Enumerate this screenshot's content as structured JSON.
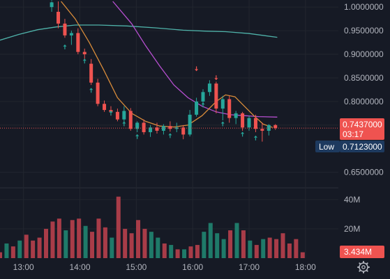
{
  "colors": {
    "background": "#161a25",
    "grid": "#22262f",
    "axis_text": "#b2b5be",
    "up": "#26a69a",
    "down": "#ef5350",
    "vol_up": "#1f7a69",
    "vol_down": "#a83c48",
    "ma_fast": "#d98c3a",
    "ma_mid": "#b74fd1",
    "ma_slow": "#4fb3aa",
    "arrow_up": "#26a69a",
    "arrow_down": "#ef5350",
    "price_label_bg": "#ef5350",
    "low_label_bg": "#1e3a5f"
  },
  "price_axis": {
    "ticks": [
      "1.0000000",
      "0.9500000",
      "0.9000000",
      "0.8500000",
      "0.8000000",
      "0.7500000",
      "0.6500000"
    ]
  },
  "volume_axis": {
    "ticks": [
      "40M",
      "20M"
    ]
  },
  "time_axis": {
    "ticks": [
      "13:00",
      "14:00",
      "15:00",
      "16:00",
      "17:00",
      "18:00"
    ]
  },
  "current_price": {
    "value": "0.7437000",
    "countdown": "03:17"
  },
  "low_marker": {
    "label": "Low",
    "value": "0.7123000"
  },
  "current_volume": {
    "value": "3.434M"
  },
  "settings_icon": "gear-icon",
  "chart_data": {
    "type": "candlestick",
    "price_range": [
      0.62,
      1.015
    ],
    "volume_range": [
      0,
      48
    ],
    "x_time_range": [
      "12:35",
      "18:35"
    ],
    "candles": [
      {
        "t": "13:30",
        "o": 1.0,
        "h": 1.012,
        "l": 0.99,
        "c": 1.01
      },
      {
        "t": "13:37",
        "o": 0.99,
        "h": 1.012,
        "l": 0.955,
        "c": 0.965
      },
      {
        "t": "13:44",
        "o": 0.965,
        "h": 0.975,
        "l": 0.935,
        "c": 0.94
      },
      {
        "t": "13:51",
        "o": 0.94,
        "h": 0.95,
        "l": 0.92,
        "c": 0.945
      },
      {
        "t": "13:58",
        "o": 0.945,
        "h": 0.955,
        "l": 0.9,
        "c": 0.905
      },
      {
        "t": "14:05",
        "o": 0.905,
        "h": 0.912,
        "l": 0.89,
        "c": 0.9
      },
      {
        "t": "14:12",
        "o": 0.88,
        "h": 0.89,
        "l": 0.835,
        "c": 0.84
      },
      {
        "t": "14:19",
        "o": 0.84,
        "h": 0.848,
        "l": 0.79,
        "c": 0.795
      },
      {
        "t": "14:26",
        "o": 0.795,
        "h": 0.802,
        "l": 0.778,
        "c": 0.782
      },
      {
        "t": "14:33",
        "o": 0.782,
        "h": 0.79,
        "l": 0.77,
        "c": 0.778
      },
      {
        "t": "14:40",
        "o": 0.778,
        "h": 0.785,
        "l": 0.758,
        "c": 0.762
      },
      {
        "t": "14:47",
        "o": 0.762,
        "h": 0.79,
        "l": 0.755,
        "c": 0.78
      },
      {
        "t": "14:54",
        "o": 0.78,
        "h": 0.786,
        "l": 0.738,
        "c": 0.742
      },
      {
        "t": "15:01",
        "o": 0.742,
        "h": 0.758,
        "l": 0.735,
        "c": 0.755
      },
      {
        "t": "15:08",
        "o": 0.755,
        "h": 0.762,
        "l": 0.73,
        "c": 0.735
      },
      {
        "t": "15:15",
        "o": 0.735,
        "h": 0.75,
        "l": 0.725,
        "c": 0.745
      },
      {
        "t": "15:22",
        "o": 0.745,
        "h": 0.755,
        "l": 0.732,
        "c": 0.738
      },
      {
        "t": "15:29",
        "o": 0.738,
        "h": 0.752,
        "l": 0.73,
        "c": 0.748
      },
      {
        "t": "15:36",
        "o": 0.748,
        "h": 0.758,
        "l": 0.736,
        "c": 0.742
      },
      {
        "t": "15:43",
        "o": 0.742,
        "h": 0.755,
        "l": 0.735,
        "c": 0.745
      },
      {
        "t": "15:50",
        "o": 0.745,
        "h": 0.75,
        "l": 0.72,
        "c": 0.73
      },
      {
        "t": "15:57",
        "o": 0.73,
        "h": 0.782,
        "l": 0.726,
        "c": 0.772
      },
      {
        "t": "16:04",
        "o": 0.772,
        "h": 0.808,
        "l": 0.768,
        "c": 0.8
      },
      {
        "t": "16:11",
        "o": 0.8,
        "h": 0.826,
        "l": 0.795,
        "c": 0.82
      },
      {
        "t": "16:18",
        "o": 0.82,
        "h": 0.845,
        "l": 0.812,
        "c": 0.838
      },
      {
        "t": "16:25",
        "o": 0.838,
        "h": 0.842,
        "l": 0.775,
        "c": 0.785
      },
      {
        "t": "16:32",
        "o": 0.785,
        "h": 0.812,
        "l": 0.76,
        "c": 0.805
      },
      {
        "t": "16:39",
        "o": 0.805,
        "h": 0.812,
        "l": 0.755,
        "c": 0.765
      },
      {
        "t": "16:46",
        "o": 0.765,
        "h": 0.78,
        "l": 0.752,
        "c": 0.775
      },
      {
        "t": "16:53",
        "o": 0.775,
        "h": 0.778,
        "l": 0.738,
        "c": 0.745
      },
      {
        "t": "17:00",
        "o": 0.745,
        "h": 0.77,
        "l": 0.738,
        "c": 0.765
      },
      {
        "t": "17:07",
        "o": 0.765,
        "h": 0.772,
        "l": 0.735,
        "c": 0.742
      },
      {
        "t": "17:14",
        "o": 0.742,
        "h": 0.755,
        "l": 0.715,
        "c": 0.738
      },
      {
        "t": "17:21",
        "o": 0.738,
        "h": 0.752,
        "l": 0.728,
        "c": 0.75
      },
      {
        "t": "17:28",
        "o": 0.75,
        "h": 0.752,
        "l": 0.74,
        "c": 0.7437
      }
    ],
    "volume": [
      {
        "t": "12:35",
        "v": 4,
        "up": false
      },
      {
        "t": "12:42",
        "v": 10,
        "up": true
      },
      {
        "t": "12:49",
        "v": 8,
        "up": false
      },
      {
        "t": "12:56",
        "v": 12,
        "up": true
      },
      {
        "t": "13:03",
        "v": 16,
        "up": false
      },
      {
        "t": "13:10",
        "v": 12,
        "up": false
      },
      {
        "t": "13:17",
        "v": 14,
        "up": false
      },
      {
        "t": "13:24",
        "v": 20,
        "up": false
      },
      {
        "t": "13:31",
        "v": 25,
        "up": false
      },
      {
        "t": "13:38",
        "v": 27,
        "up": false
      },
      {
        "t": "13:45",
        "v": 19,
        "up": true
      },
      {
        "t": "13:52",
        "v": 26,
        "up": false
      },
      {
        "t": "13:59",
        "v": 27,
        "up": false
      },
      {
        "t": "14:06",
        "v": 22,
        "up": true
      },
      {
        "t": "14:13",
        "v": 18,
        "up": false
      },
      {
        "t": "14:20",
        "v": 27,
        "up": false
      },
      {
        "t": "14:27",
        "v": 21,
        "up": false
      },
      {
        "t": "14:34",
        "v": 14,
        "up": true
      },
      {
        "t": "14:41",
        "v": 42,
        "up": false
      },
      {
        "t": "14:48",
        "v": 20,
        "up": false
      },
      {
        "t": "14:55",
        "v": 17,
        "up": false
      },
      {
        "t": "15:02",
        "v": 26,
        "up": false
      },
      {
        "t": "15:09",
        "v": 20,
        "up": false
      },
      {
        "t": "15:16",
        "v": 18,
        "up": true
      },
      {
        "t": "15:23",
        "v": 14,
        "up": true
      },
      {
        "t": "15:30",
        "v": 10,
        "up": false
      },
      {
        "t": "15:37",
        "v": 9,
        "up": true
      },
      {
        "t": "15:44",
        "v": 6,
        "up": false
      },
      {
        "t": "15:51",
        "v": 6,
        "up": true
      },
      {
        "t": "15:58",
        "v": 8,
        "up": false
      },
      {
        "t": "16:05",
        "v": 9,
        "up": false
      },
      {
        "t": "16:12",
        "v": 18,
        "up": true
      },
      {
        "t": "16:19",
        "v": 24,
        "up": true
      },
      {
        "t": "16:26",
        "v": 17,
        "up": true
      },
      {
        "t": "16:33",
        "v": 13,
        "up": true
      },
      {
        "t": "16:40",
        "v": 19,
        "up": false
      },
      {
        "t": "16:47",
        "v": 24,
        "up": true
      },
      {
        "t": "16:54",
        "v": 19,
        "up": false
      },
      {
        "t": "17:01",
        "v": 12,
        "up": true
      },
      {
        "t": "17:08",
        "v": 9,
        "up": false
      },
      {
        "t": "17:15",
        "v": 13,
        "up": true
      },
      {
        "t": "17:22",
        "v": 14,
        "up": false
      },
      {
        "t": "17:29",
        "v": 13,
        "up": false
      },
      {
        "t": "17:36",
        "v": 17,
        "up": false
      },
      {
        "t": "17:43",
        "v": 10,
        "up": false
      },
      {
        "t": "17:50",
        "v": 13,
        "up": false
      },
      {
        "t": "17:57",
        "v": 4,
        "up": false
      }
    ],
    "signals": [
      {
        "t": "13:30",
        "dir": "up",
        "price": 1.018
      },
      {
        "t": "13:44",
        "dir": "up",
        "price": 0.915
      },
      {
        "t": "14:05",
        "dir": "up",
        "price": 0.885
      },
      {
        "t": "14:12",
        "dir": "up",
        "price": 0.823
      },
      {
        "t": "14:33",
        "dir": "up",
        "price": 0.775
      },
      {
        "t": "14:47",
        "dir": "up",
        "price": 0.752
      },
      {
        "t": "15:01",
        "dir": "up",
        "price": 0.725
      },
      {
        "t": "15:36",
        "dir": "up",
        "price": 0.727
      },
      {
        "t": "16:04",
        "dir": "down",
        "price": 0.87
      },
      {
        "t": "16:11",
        "dir": "up",
        "price": 0.792
      },
      {
        "t": "16:25",
        "dir": "down",
        "price": 0.851
      },
      {
        "t": "16:32",
        "dir": "up",
        "price": 0.752
      },
      {
        "t": "16:53",
        "dir": "up",
        "price": 0.73
      },
      {
        "t": "17:07",
        "dir": "up",
        "price": 0.722
      }
    ],
    "ma_fast": [
      {
        "t": "13:40",
        "p": 1.012
      },
      {
        "t": "13:55",
        "p": 0.975
      },
      {
        "t": "14:10",
        "p": 0.925
      },
      {
        "t": "14:25",
        "p": 0.868
      },
      {
        "t": "14:40",
        "p": 0.808
      },
      {
        "t": "14:55",
        "p": 0.775
      },
      {
        "t": "15:10",
        "p": 0.758
      },
      {
        "t": "15:25",
        "p": 0.748
      },
      {
        "t": "15:40",
        "p": 0.746
      },
      {
        "t": "15:55",
        "p": 0.75
      },
      {
        "t": "16:10",
        "p": 0.77
      },
      {
        "t": "16:25",
        "p": 0.8
      },
      {
        "t": "16:35",
        "p": 0.814
      },
      {
        "t": "16:45",
        "p": 0.81
      },
      {
        "t": "16:55",
        "p": 0.79
      },
      {
        "t": "17:05",
        "p": 0.77
      },
      {
        "t": "17:15",
        "p": 0.752
      },
      {
        "t": "17:25",
        "p": 0.745
      }
    ],
    "ma_mid": [
      {
        "t": "14:35",
        "p": 1.012
      },
      {
        "t": "14:55",
        "p": 0.965
      },
      {
        "t": "15:10",
        "p": 0.918
      },
      {
        "t": "15:25",
        "p": 0.875
      },
      {
        "t": "15:40",
        "p": 0.835
      },
      {
        "t": "15:55",
        "p": 0.808
      },
      {
        "t": "16:10",
        "p": 0.79
      },
      {
        "t": "16:25",
        "p": 0.778
      },
      {
        "t": "16:40",
        "p": 0.772
      },
      {
        "t": "16:55",
        "p": 0.77
      },
      {
        "t": "17:10",
        "p": 0.768
      },
      {
        "t": "17:30",
        "p": 0.767
      }
    ],
    "ma_slow": [
      {
        "t": "12:35",
        "p": 0.93
      },
      {
        "t": "12:55",
        "p": 0.942
      },
      {
        "t": "13:15",
        "p": 0.952
      },
      {
        "t": "13:35",
        "p": 0.958
      },
      {
        "t": "13:55",
        "p": 0.962
      },
      {
        "t": "14:20",
        "p": 0.962
      },
      {
        "t": "14:50",
        "p": 0.96
      },
      {
        "t": "15:20",
        "p": 0.956
      },
      {
        "t": "15:50",
        "p": 0.951
      },
      {
        "t": "16:15",
        "p": 0.949
      },
      {
        "t": "16:35",
        "p": 0.948
      },
      {
        "t": "17:00",
        "p": 0.944
      },
      {
        "t": "17:30",
        "p": 0.936
      }
    ]
  }
}
